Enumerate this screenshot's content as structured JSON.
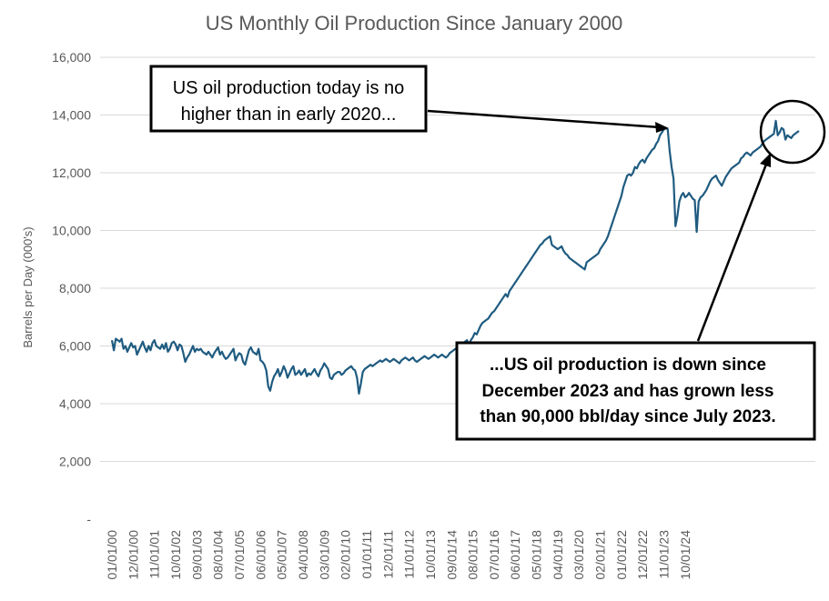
{
  "chart_data": {
    "type": "line",
    "title": "US Monthly Oil Production Since January 2000",
    "ylabel": "Barrels per Day (000's)",
    "xlabel": "",
    "ylim": [
      0,
      16000
    ],
    "grid": true,
    "y_ticks": [
      "-",
      "2,000",
      "4,000",
      "6,000",
      "8,000",
      "10,000",
      "12,000",
      "14,000",
      "16,000"
    ],
    "x_ticks": [
      "01/01/00",
      "12/01/00",
      "11/01/01",
      "10/01/02",
      "09/01/03",
      "08/01/04",
      "07/01/05",
      "06/01/06",
      "05/01/07",
      "04/01/08",
      "03/01/09",
      "02/01/10",
      "01/01/11",
      "12/01/11",
      "11/01/12",
      "10/01/13",
      "09/01/14",
      "08/01/15",
      "07/01/16",
      "06/01/17",
      "05/01/18",
      "04/01/19",
      "03/01/20",
      "02/01/21",
      "01/01/22",
      "12/01/22",
      "11/01/23",
      "10/01/24"
    ],
    "series_color": "#1f5b80",
    "series": [
      {
        "values": [
          6200,
          5850,
          6250,
          6200,
          6150,
          6250,
          5900,
          6000,
          5800,
          5950,
          6100,
          5950,
          6000,
          5700,
          5850,
          6000,
          6150,
          5950,
          5800,
          6000,
          5850,
          6100,
          6200,
          6000,
          5950,
          5900,
          6050,
          5900,
          6100,
          5800,
          5900,
          6100,
          6150,
          6050,
          5850,
          6050,
          6000,
          5750,
          5450,
          5600,
          5700,
          5850,
          6000,
          5800,
          5900,
          5850,
          5900,
          5800,
          5750,
          5700,
          5800,
          5700,
          5600,
          5750,
          5850,
          5950,
          5700,
          5800,
          5650,
          5550,
          5600,
          5700,
          5800,
          5900,
          5500,
          5650,
          5750,
          5700,
          5450,
          5350,
          5600,
          5850,
          5950,
          5800,
          5750,
          5700,
          5900,
          5500,
          5450,
          5350,
          5150,
          4600,
          4450,
          4750,
          4950,
          5050,
          5200,
          4950,
          5100,
          5300,
          5150,
          4900,
          5050,
          5200,
          5300,
          5000,
          5050,
          5150,
          5000,
          5100,
          5200,
          4950,
          5050,
          5000,
          5100,
          5200,
          5050,
          4950,
          5150,
          5250,
          5400,
          5300,
          5200,
          4900,
          4850,
          5000,
          5050,
          5100,
          5100,
          5000,
          5050,
          5150,
          5200,
          5250,
          5300,
          5200,
          5150,
          4900,
          4350,
          4700,
          5100,
          5200,
          5250,
          5300,
          5350,
          5300,
          5350,
          5400,
          5450,
          5500,
          5450,
          5500,
          5550,
          5500,
          5450,
          5500,
          5550,
          5500,
          5450,
          5400,
          5500,
          5550,
          5600,
          5550,
          5500,
          5550,
          5600,
          5500,
          5450,
          5500,
          5550,
          5600,
          5650,
          5600,
          5550,
          5600,
          5650,
          5700,
          5650,
          5600,
          5650,
          5700,
          5650,
          5600,
          5650,
          5750,
          5800,
          5850,
          5900,
          5950,
          5900,
          6000,
          6100,
          6150,
          6200,
          6050,
          6200,
          6300,
          6450,
          6400,
          6550,
          6700,
          6800,
          6850,
          6900,
          6950,
          7050,
          7150,
          7200,
          7300,
          7400,
          7500,
          7600,
          7700,
          7800,
          7700,
          7900,
          8000,
          8100,
          8200,
          8300,
          8400,
          8500,
          8600,
          8700,
          8800,
          8900,
          9000,
          9100,
          9200,
          9300,
          9400,
          9500,
          9550,
          9650,
          9700,
          9750,
          9800,
          9500,
          9450,
          9400,
          9350,
          9400,
          9450,
          9300,
          9200,
          9150,
          9050,
          9000,
          8950,
          8900,
          8850,
          8800,
          8750,
          8700,
          8650,
          8900,
          8950,
          9000,
          9050,
          9100,
          9150,
          9200,
          9350,
          9450,
          9550,
          9650,
          9800,
          10000,
          10200,
          10400,
          10600,
          10800,
          11000,
          11200,
          11500,
          11700,
          11900,
          11950,
          11900,
          12000,
          12200,
          12150,
          12300,
          12400,
          12450,
          12350,
          12500,
          12600,
          12700,
          12800,
          12850,
          13000,
          13100,
          13300,
          13400,
          13500,
          13550,
          13500,
          12750,
          12200,
          11800,
          10150,
          10500,
          11000,
          11200,
          11300,
          11150,
          11200,
          11300,
          11200,
          11100,
          11050,
          9950,
          11000,
          11150,
          11200,
          11300,
          11400,
          11550,
          11700,
          11800,
          11850,
          11900,
          11750,
          11650,
          11550,
          11700,
          11850,
          11950,
          12050,
          12150,
          12200,
          12250,
          12300,
          12350,
          12500,
          12550,
          12650,
          12700,
          12650,
          12600,
          12700,
          12750,
          12800,
          12850,
          12900,
          13000,
          13100,
          13150,
          13200,
          13250,
          13300,
          13350,
          13800,
          13300,
          13400,
          13550,
          13500,
          13150,
          13300,
          13250,
          13200,
          13300,
          13350,
          13400,
          13450
        ]
      }
    ],
    "annotations": {
      "top_box": {
        "lines": [
          "US oil production today is no",
          "higher than in early 2020..."
        ]
      },
      "bottom_box": {
        "lines": [
          "...US oil production is down since",
          "December 2023 and has grown less",
          "than 90,000 bbl/day since  July 2023."
        ]
      }
    }
  }
}
